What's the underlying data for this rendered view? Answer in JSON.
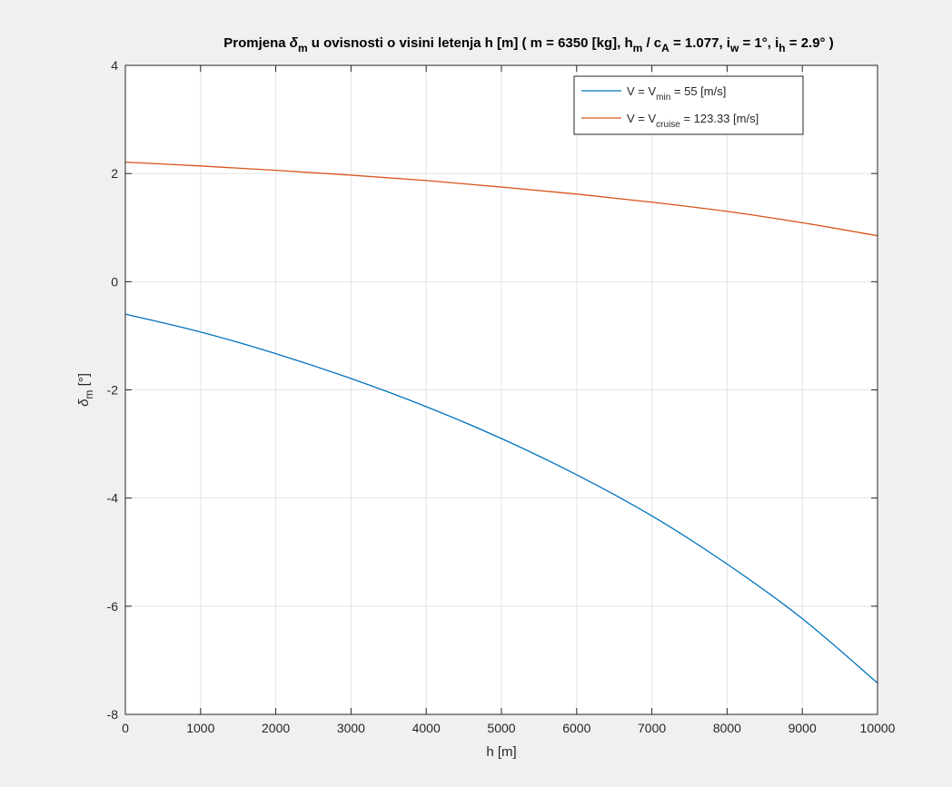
{
  "figure": {
    "background": "#f0f0f0"
  },
  "chart_data": {
    "type": "line",
    "title_parts": [
      {
        "text": "Promjena ",
        "style": "normal"
      },
      {
        "text": "δ",
        "style": "italic"
      },
      {
        "text": "m",
        "style": "sub"
      },
      {
        "text": " u ovisnosti o visini letenja h [m] ( m = 6350 [kg], h",
        "style": "normal"
      },
      {
        "text": "m",
        "style": "sub"
      },
      {
        "text": " / c",
        "style": "normal"
      },
      {
        "text": "A",
        "style": "sub"
      },
      {
        "text": " = 1.077, i",
        "style": "normal"
      },
      {
        "text": "w",
        "style": "sub"
      },
      {
        "text": " = 1°, i",
        "style": "normal"
      },
      {
        "text": "h",
        "style": "sub"
      },
      {
        "text": " = 2.9° )",
        "style": "normal"
      }
    ],
    "xlabel": "h [m]",
    "ylabel_parts": [
      {
        "text": "δ",
        "style": "italic"
      },
      {
        "text": "m",
        "style": "sub"
      },
      {
        "text": " [°]",
        "style": "normal"
      }
    ],
    "xlim": [
      0,
      10000
    ],
    "ylim": [
      -8,
      4
    ],
    "xticks": [
      0,
      1000,
      2000,
      3000,
      4000,
      5000,
      6000,
      7000,
      8000,
      9000,
      10000
    ],
    "yticks": [
      -8,
      -6,
      -4,
      -2,
      0,
      2,
      4
    ],
    "grid": true,
    "legend_position": "top-right",
    "x": [
      0,
      1000,
      2000,
      3000,
      4000,
      5000,
      6000,
      7000,
      8000,
      9000,
      10000
    ],
    "series": [
      {
        "legend_parts": [
          {
            "text": "V = V",
            "style": "normal"
          },
          {
            "text": "min",
            "style": "sub"
          },
          {
            "text": " = 55 [m/s]",
            "style": "normal"
          }
        ],
        "color": "#0072bd",
        "values": [
          -0.6,
          -0.93,
          -1.33,
          -1.79,
          -2.31,
          -2.9,
          -3.57,
          -4.33,
          -5.22,
          -6.23,
          -7.42
        ]
      },
      {
        "legend_parts": [
          {
            "text": "V = V",
            "style": "normal"
          },
          {
            "text": "cruise",
            "style": "sub"
          },
          {
            "text": " = 123.33 [m/s]",
            "style": "normal"
          }
        ],
        "color": "#d95319",
        "values": [
          2.21,
          2.14,
          2.06,
          1.97,
          1.87,
          1.75,
          1.62,
          1.47,
          1.3,
          1.09,
          0.85
        ]
      }
    ]
  }
}
